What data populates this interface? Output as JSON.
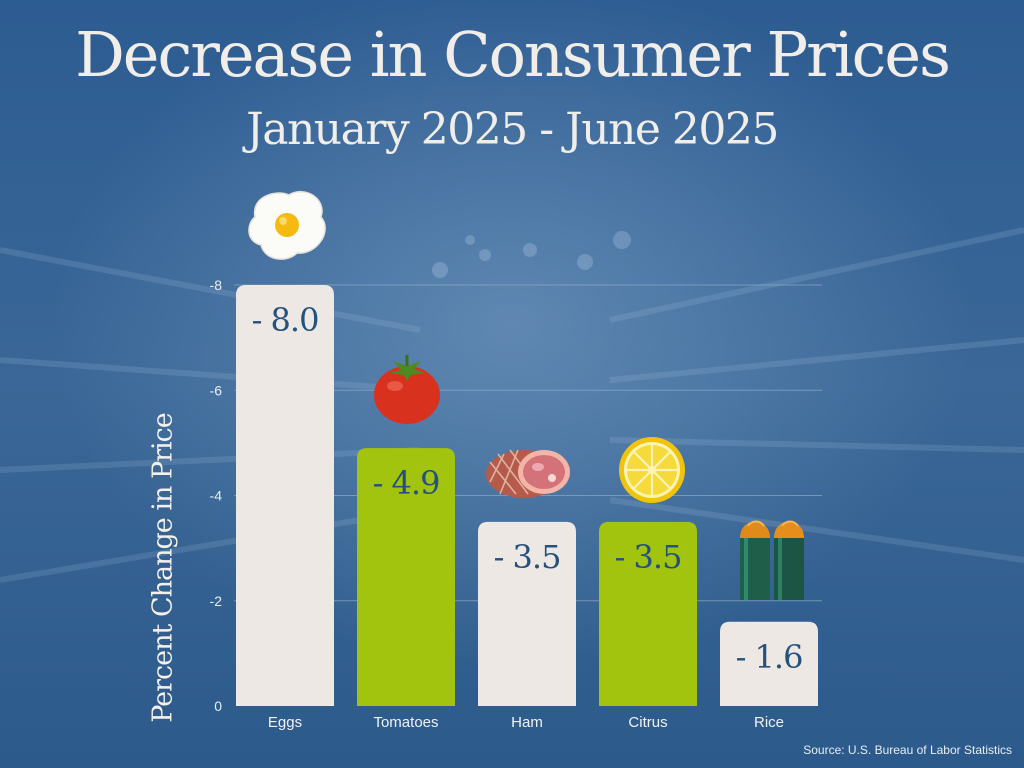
{
  "title": "Decrease in Consumer Prices",
  "subtitle": "January 2025  -  June 2025",
  "source": "Source: U.S. Bureau of Labor Statistics",
  "colors": {
    "background": "#2f5d8f",
    "bar_light": "#ede8e4",
    "bar_green": "#a3c40e",
    "value_text": "#24527e",
    "grid": "#8fa9c4"
  },
  "icons": [
    "fried-egg-icon",
    "tomato-icon",
    "ham-icon",
    "lemon-slice-icon",
    "rice-bags-icon"
  ],
  "chart_data": {
    "type": "bar",
    "title": "Decrease in Consumer Prices",
    "subtitle": "January 2025  -  June 2025",
    "ylabel": "Percent Change in Price",
    "xlabel": "",
    "categories": [
      "Eggs",
      "Tomatoes",
      "Ham",
      "Citrus",
      "Rice"
    ],
    "values": [
      -8.0,
      -4.9,
      -3.5,
      -3.5,
      -1.6
    ],
    "value_labels": [
      "- 8.0",
      "- 4.9",
      "- 3.5",
      "- 3.5",
      "- 1.6"
    ],
    "ylim": [
      0,
      -8
    ],
    "yticks": [
      "0",
      "-2",
      "-4",
      "-6",
      "-8"
    ],
    "ytick_values": [
      0,
      -2,
      -4,
      -6,
      -8
    ],
    "grid": true,
    "bar_colors": [
      "#ede8e4",
      "#a3c40e",
      "#ede8e4",
      "#a3c40e",
      "#ede8e4"
    ]
  }
}
